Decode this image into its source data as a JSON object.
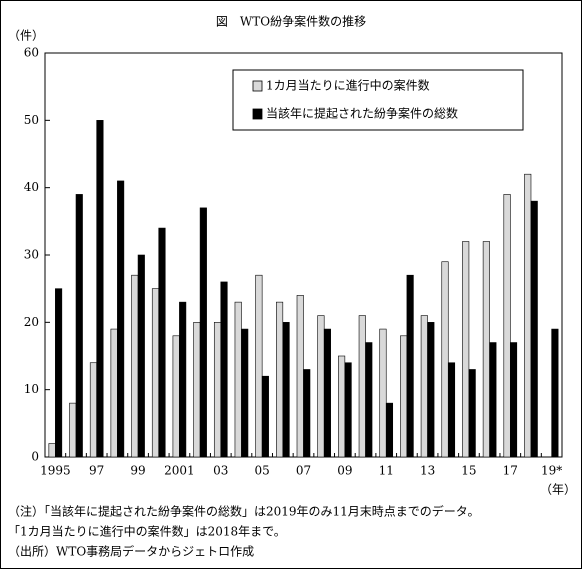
{
  "chart_data": {
    "type": "bar",
    "title": "図　WTO紛争案件数の推移",
    "y_label": "（件）",
    "x_label": "（年）",
    "categories": [
      "1995",
      null,
      "97",
      null,
      "99",
      null,
      "2001",
      null,
      "03",
      null,
      "05",
      null,
      "07",
      null,
      "09",
      null,
      "11",
      null,
      "13",
      null,
      "15",
      null,
      "17",
      null,
      "19*"
    ],
    "series": [
      {
        "name": "1カ月当たりに進行中の案件数",
        "color": "#d9d9d9",
        "values": [
          2,
          8,
          14,
          19,
          27,
          25,
          18,
          20,
          20,
          23,
          27,
          23,
          24,
          21,
          15,
          21,
          19,
          18,
          21,
          29,
          32,
          32,
          39,
          42,
          null
        ]
      },
      {
        "name": "当該年に提起された紛争案件の総数",
        "color": "#000000",
        "values": [
          25,
          39,
          50,
          41,
          30,
          34,
          23,
          37,
          26,
          19,
          12,
          20,
          13,
          19,
          14,
          17,
          8,
          27,
          20,
          14,
          13,
          17,
          17,
          38,
          19
        ]
      }
    ],
    "ylim": [
      0,
      60
    ],
    "yticks": [
      0,
      10,
      20,
      30,
      40,
      50,
      60
    ],
    "grid": false,
    "legend": "top-right",
    "notes": [
      "（注）「当該年に提起された紛争案件の総数」は2019年のみ11月末時点までのデータ。",
      "「1カ月当たりに進行中の案件数」は2018年まで。",
      "（出所）WTO事務局データからジェトロ作成"
    ]
  }
}
